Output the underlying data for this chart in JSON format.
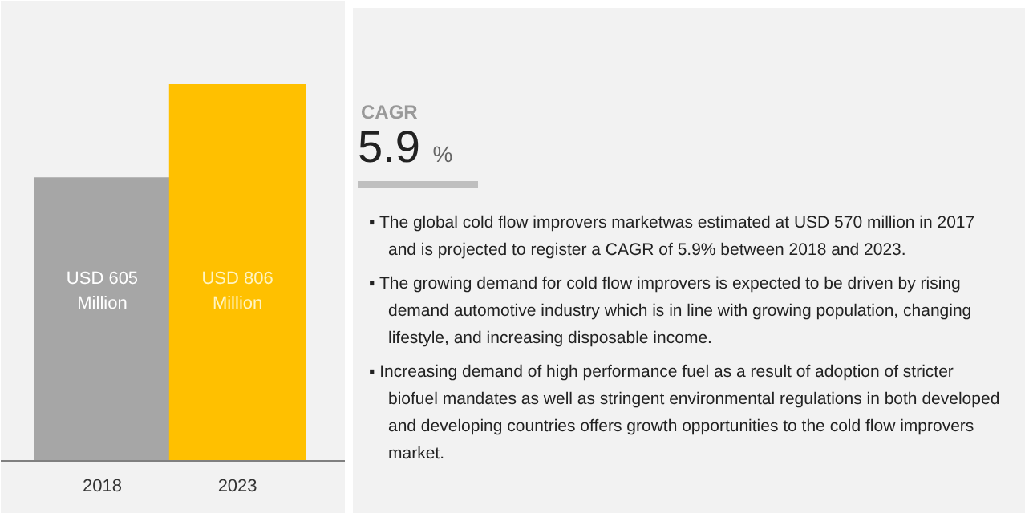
{
  "chart_data": {
    "type": "bar",
    "categories": [
      "2018",
      "2023"
    ],
    "values": [
      605,
      806
    ],
    "colors": [
      "#a6a6a6",
      "#ffc000"
    ],
    "value_labels": [
      "USD 605\nMillion",
      "USD 806\nMillion"
    ],
    "grid": false,
    "tick_labels": "x",
    "annotations": [
      "CAGR",
      "5.9 %",
      "▪ The global cold flow improvers marketwas estimated at USD 570 million in 2017 and is projected to register a CAGR of 5.9% between 2018 and 2023.",
      "▪ The growing demand for cold flow improvers is expected to be driven by rising demand automotive industry which is in line with growing population, changing lifestyle, and increasing disposable income.",
      "▪ Increasing demand of high performance fuel as a result of adoption of stricter biofuel mandates as well as stringent environmental regulations in both developed and developing countries offers growth opportunities to the cold flow improvers market."
    ]
  }
}
